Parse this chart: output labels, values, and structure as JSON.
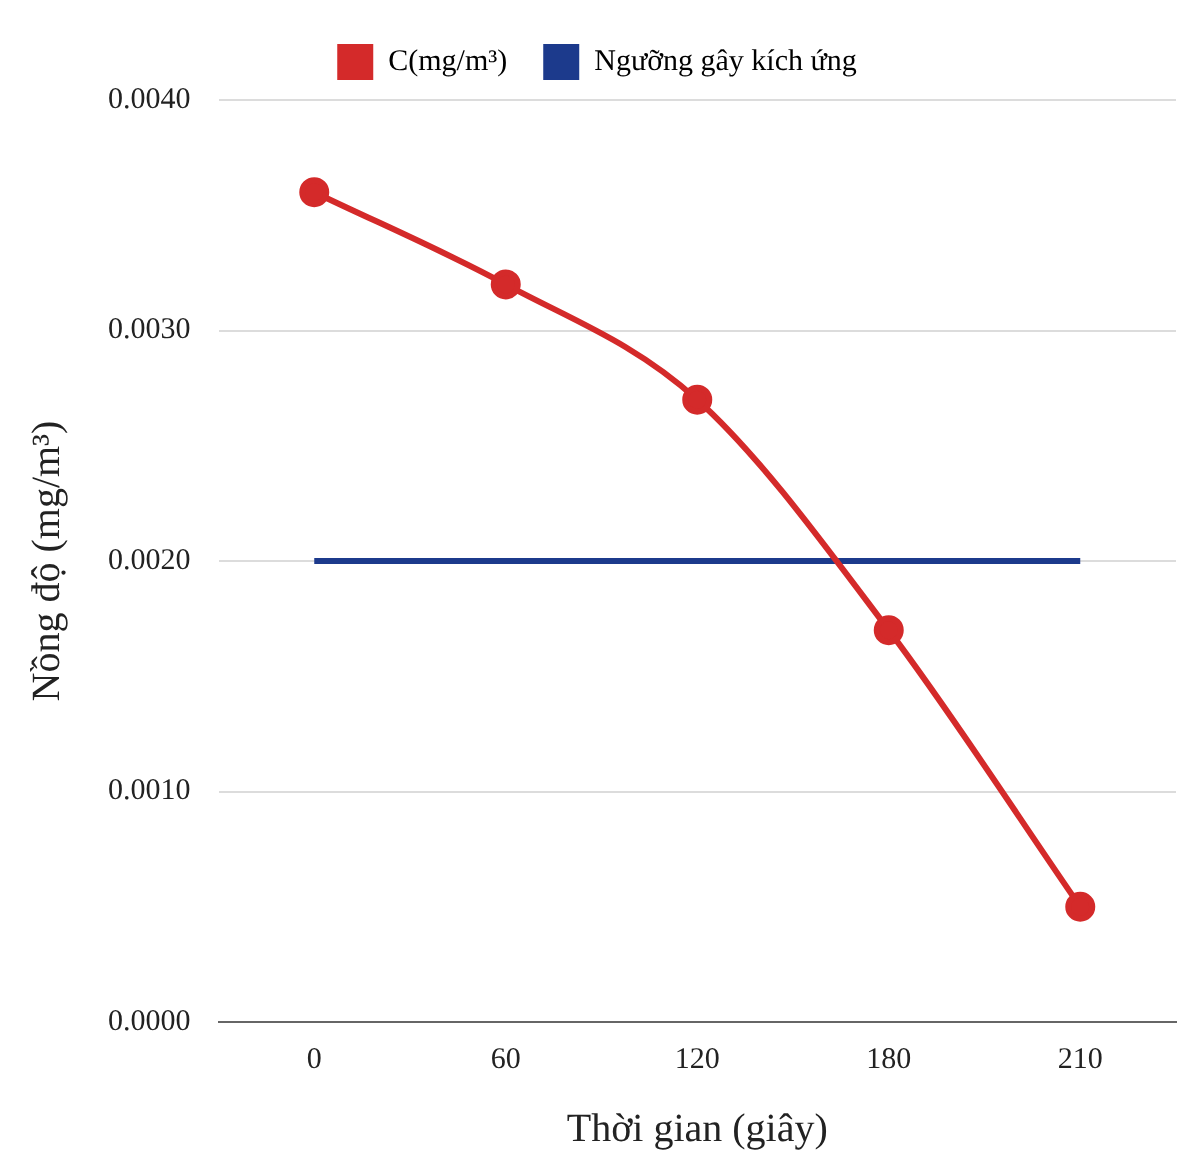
{
  "chart_data": {
    "type": "line",
    "xlabel": "Thời gian (giây)",
    "ylabel": "Nồng độ (mg/m³)",
    "categories": [
      "0",
      "60",
      "120",
      "180",
      "210"
    ],
    "series": [
      {
        "name": "C(mg/m³)",
        "color": "#d42a2a",
        "values": [
          0.0036,
          0.0032,
          0.0027,
          0.0017,
          0.0005
        ],
        "marker": "circle"
      },
      {
        "name": "Ngưỡng gây kích ứng",
        "color": "#1c3a8c",
        "values": [
          0.002,
          0.002,
          0.002,
          0.002,
          0.002
        ],
        "marker": "none"
      }
    ],
    "ylim": [
      0,
      0.004
    ],
    "yticks": [
      {
        "value": 0,
        "label": "0.0000"
      },
      {
        "value": 0.001,
        "label": "0.0010"
      },
      {
        "value": 0.002,
        "label": "0.0020"
      },
      {
        "value": 0.003,
        "label": "0.0030"
      },
      {
        "value": 0.004,
        "label": "0.0040"
      }
    ],
    "grid": "y",
    "legend": "top"
  }
}
